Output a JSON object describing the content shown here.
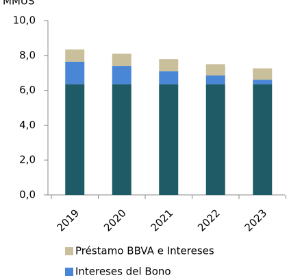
{
  "chart_data": {
    "type": "bar",
    "stacked": true,
    "y_axis_label": "MMUS",
    "categories": [
      "2019",
      "2020",
      "2021",
      "2022",
      "2023"
    ],
    "series": [
      {
        "color": "#1f5b67",
        "values": [
          6.35,
          6.35,
          6.35,
          6.35,
          6.35
        ]
      },
      {
        "name": "Intereses del Bono",
        "color": "#4a86d6",
        "values": [
          1.29,
          1.05,
          0.74,
          0.5,
          0.26
        ]
      },
      {
        "name": "Préstamo BBVA e Intereses",
        "color": "#c9bf9b",
        "values": [
          0.7,
          0.7,
          0.7,
          0.65,
          0.65
        ]
      }
    ],
    "ylim": [
      0,
      10
    ],
    "yticks": [
      {
        "value": 0,
        "label": "0,0"
      },
      {
        "value": 2,
        "label": "2,0"
      },
      {
        "value": 4,
        "label": "4,0"
      },
      {
        "value": 6,
        "label": "6,0"
      },
      {
        "value": 8,
        "label": "8,0"
      },
      {
        "value": 10,
        "label": "10,0"
      }
    ]
  }
}
